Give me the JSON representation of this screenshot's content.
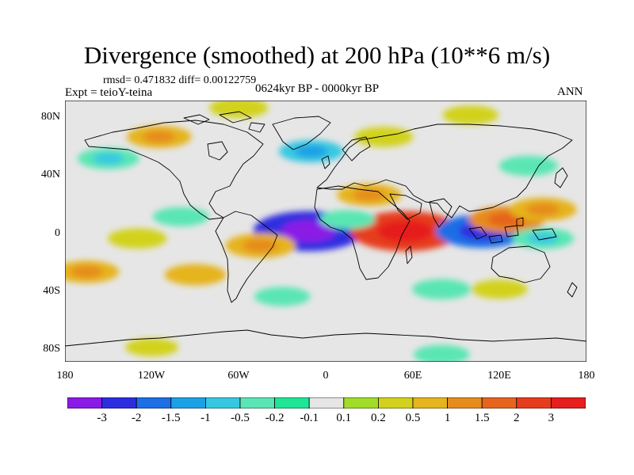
{
  "title": "Divergence (smoothed) at 200 hPa (10**6 m/s)",
  "stats": "rmsd= 0.471832 diff= 0.00122759",
  "expt": "Expt = teioY-teina",
  "period": "0624kyr BP - 0000kyr BP",
  "season": "ANN",
  "lat_labels": [
    "80N",
    "40N",
    "0",
    "40S",
    "80S"
  ],
  "lon_labels": [
    "180",
    "120W",
    "60W",
    "0",
    "60E",
    "120E",
    "180"
  ],
  "colorbar": {
    "labels": [
      "-3",
      "-2",
      "-1.5",
      "-1",
      "-0.5",
      "-0.2",
      "-0.1",
      "0.1",
      "0.2",
      "0.5",
      "1",
      "1.5",
      "2",
      "3"
    ],
    "colors": [
      "#8a1ae6",
      "#2d2de0",
      "#1e6ee6",
      "#1ea0e6",
      "#37c8e1",
      "#5ae6b4",
      "#1ee696",
      "#e6e6e6",
      "#a0dc28",
      "#d2d21e",
      "#e6b41e",
      "#e68c1e",
      "#e6641e",
      "#e63c1e",
      "#e61e1e"
    ]
  },
  "chart_data": {
    "type": "heatmap",
    "title": "Divergence (smoothed) at 200 hPa (10**6 m/s)",
    "units": "10**6 m/s",
    "variable": "Divergence (smoothed) at 200 hPa",
    "experiment": "teioY-teina",
    "period": "0624kyr BP - 0000kyr BP",
    "season": "ANN",
    "rmsd": 0.471832,
    "diff": 0.00122759,
    "levels": [
      -3,
      -2,
      -1.5,
      -1,
      -0.5,
      -0.2,
      -0.1,
      0.1,
      0.2,
      0.5,
      1,
      1.5,
      2,
      3
    ],
    "xlim": [
      -180,
      180
    ],
    "ylim": [
      -90,
      90
    ],
    "features": [
      {
        "lon": -12,
        "lat": 0,
        "value": -2.2
      },
      {
        "lon": -45,
        "lat": -10,
        "value": 0.8
      },
      {
        "lon": 55,
        "lat": 0,
        "value": 2.2
      },
      {
        "lon": 108,
        "lat": 0,
        "value": -1.6
      },
      {
        "lon": 125,
        "lat": 8,
        "value": 1.0
      },
      {
        "lon": 150,
        "lat": 15,
        "value": 0.7
      },
      {
        "lon": 150,
        "lat": -5,
        "value": -0.5
      },
      {
        "lon": 30,
        "lat": 25,
        "value": 0.6
      },
      {
        "lon": 15,
        "lat": 8,
        "value": -0.3
      },
      {
        "lon": -100,
        "lat": 10,
        "value": -0.3
      },
      {
        "lon": -130,
        "lat": -5,
        "value": 0.4
      },
      {
        "lon": -165,
        "lat": -28,
        "value": 0.6
      },
      {
        "lon": -90,
        "lat": -30,
        "value": 0.5
      },
      {
        "lon": -115,
        "lat": 65,
        "value": 0.6
      },
      {
        "lon": -10,
        "lat": 55,
        "value": -0.6
      },
      {
        "lon": 40,
        "lat": 65,
        "value": 0.4
      },
      {
        "lon": 140,
        "lat": 45,
        "value": -0.4
      },
      {
        "lon": 80,
        "lat": -40,
        "value": -0.4
      },
      {
        "lon": 120,
        "lat": -40,
        "value": 0.3
      },
      {
        "lon": -150,
        "lat": 50,
        "value": -0.5
      },
      {
        "lon": 100,
        "lat": 80,
        "value": 0.3
      },
      {
        "lon": -60,
        "lat": 85,
        "value": 0.4
      },
      {
        "lon": -120,
        "lat": -80,
        "value": 0.2
      },
      {
        "lon": 80,
        "lat": -85,
        "value": -0.3
      },
      {
        "lon": -30,
        "lat": -45,
        "value": -0.3
      }
    ]
  }
}
